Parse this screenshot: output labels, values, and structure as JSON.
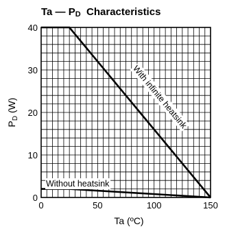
{
  "chart_data": {
    "type": "line",
    "title_main": "Ta — P",
    "title_sub": "D",
    "title_tail": "  Characteristics",
    "xlabel": "Ta  (ºC)",
    "ylabel_main": "P",
    "ylabel_sub": "D",
    "ylabel_tail": " (W)",
    "xlim": [
      0,
      150
    ],
    "ylim": [
      0,
      40
    ],
    "xticks": [
      "0",
      "50",
      "100",
      "150"
    ],
    "yticks": [
      "0",
      "10",
      "20",
      "30",
      "40"
    ],
    "grid": true,
    "series": [
      {
        "name": "With infinite heatsink",
        "x": [
          0,
          25,
          150
        ],
        "y": [
          40,
          40,
          0
        ]
      },
      {
        "name": "Without heatsink",
        "x": [
          0,
          25,
          150
        ],
        "y": [
          2,
          2,
          0
        ]
      }
    ]
  }
}
